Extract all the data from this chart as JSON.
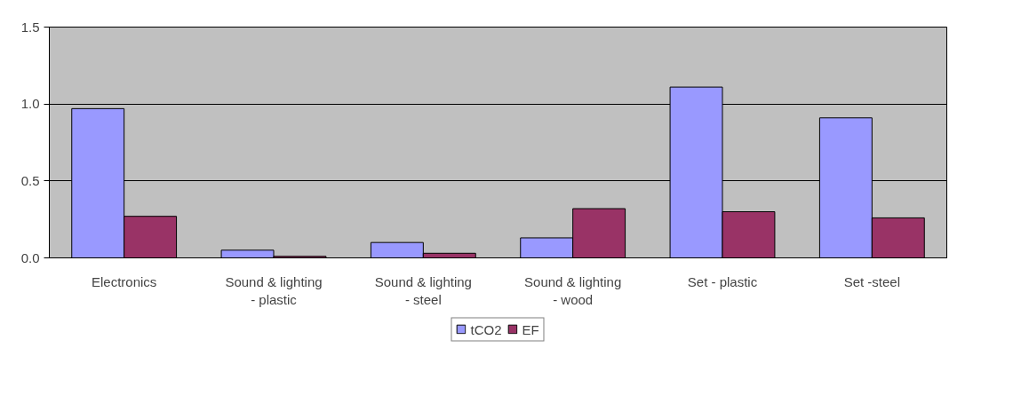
{
  "chart_data": {
    "type": "bar",
    "categories": [
      "Electronics",
      "Sound & lighting\n- plastic",
      "Sound & lighting\n- steel",
      "Sound & lighting\n- wood",
      "Set - plastic",
      "Set -steel"
    ],
    "series": [
      {
        "name": "tCO2",
        "color": "#9999ff",
        "values": [
          0.97,
          0.05,
          0.1,
          0.13,
          1.11,
          0.91
        ]
      },
      {
        "name": "EF",
        "color": "#993366",
        "values": [
          0.27,
          0.01,
          0.03,
          0.32,
          0.3,
          0.26
        ]
      }
    ],
    "ylim": [
      0,
      1.5
    ],
    "yticks": [
      {
        "value": 0,
        "label": "0.0"
      },
      {
        "value": 0.5,
        "label": "0.5"
      },
      {
        "value": 1,
        "label": "1.0"
      },
      {
        "value": 1.5,
        "label": "1.5"
      }
    ],
    "grid": "y",
    "legend": "bottom"
  }
}
